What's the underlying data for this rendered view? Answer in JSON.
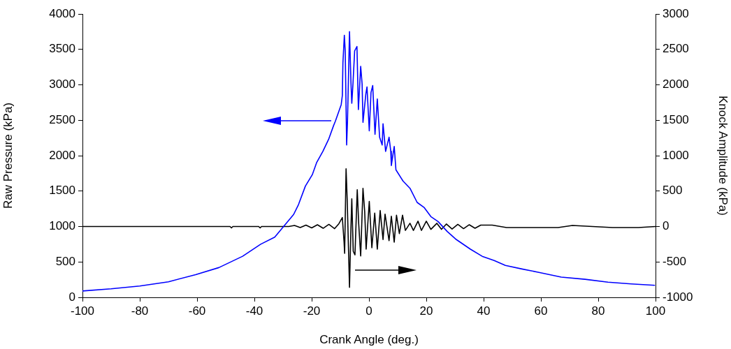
{
  "chart_data": {
    "type": "line",
    "xlabel": "Crank Angle (deg.)",
    "ylabel": "Raw Pressure (kPa)",
    "y2label": "Knock Amplitude (kPa)",
    "xlim": [
      -100,
      100
    ],
    "xticks": [
      -100,
      -80,
      -60,
      -40,
      -20,
      0,
      20,
      40,
      60,
      80,
      100
    ],
    "ylim": [
      0,
      4000
    ],
    "yticks": [
      0,
      500,
      1000,
      1500,
      2000,
      2500,
      3000,
      3500,
      4000
    ],
    "y2lim": [
      -1000,
      3000
    ],
    "y2ticks": [
      -1000,
      -500,
      0,
      500,
      1000,
      1500,
      2000,
      2500,
      3000
    ],
    "grid": false,
    "legend": false,
    "marker": "none",
    "line_style": "solid",
    "series": [
      {
        "color": "#0000ff",
        "x": [
          -100,
          -90,
          -80,
          -70,
          -60.5,
          -52.4,
          -44.1,
          -37.8,
          -32.9,
          -29.5,
          -26.3,
          -24.6,
          -22.2,
          -19.8,
          -18.3,
          -16.1,
          -14.1,
          -12.4,
          -11.7,
          -9.7,
          -9.3,
          -9.1,
          -8.6,
          -8.3,
          -7.8,
          -7.5,
          -6.8,
          -6.3,
          -6.0,
          -5.6,
          -5.0,
          -4.2,
          -3.7,
          -2.9,
          -2.4,
          -2.1,
          -1.1,
          -0.7,
          0.1,
          0.7,
          1.3,
          2.1,
          2.9,
          3.7,
          4.6,
          4.9,
          5.8,
          7.0,
          7.6,
          7.8,
          8.8,
          9.4,
          11.9,
          14.3,
          16.8,
          19.2,
          21.6,
          24.1,
          27.3,
          30.5,
          35.4,
          39.5,
          43.7,
          47.6,
          53.4,
          59.0,
          67.1,
          75.4,
          83.4,
          91.5,
          99.8
        ],
        "values": [
          90,
          120,
          160,
          220,
          320,
          420,
          580,
          750,
          850,
          1015,
          1170,
          1310,
          1570,
          1730,
          1900,
          2060,
          2230,
          2420,
          2490,
          2720,
          2850,
          3310,
          3700,
          3480,
          2150,
          2490,
          3750,
          3040,
          2740,
          3010,
          3480,
          3540,
          2650,
          3260,
          3010,
          2470,
          2870,
          2970,
          2350,
          2890,
          2990,
          2300,
          2800,
          2260,
          2150,
          2450,
          2060,
          2260,
          2060,
          1860,
          2130,
          1800,
          1640,
          1540,
          1340,
          1270,
          1140,
          1070,
          930,
          815,
          680,
          580,
          520,
          450,
          400,
          355,
          285,
          255,
          215,
          190,
          170
        ]
      },
      {
        "color": "#000000",
        "axis": "y2",
        "x": [
          -100,
          -48.5,
          -48,
          -47.5,
          -38.5,
          -38,
          -37.5,
          -28,
          -26,
          -24,
          -22,
          -20,
          -18,
          -16,
          -14,
          -12,
          -10.5,
          -9.3,
          -8.7,
          -8.5,
          -8.0,
          -7.6,
          -6.8,
          -6.3,
          -6.0,
          -5.5,
          -4.9,
          -4.1,
          -3.6,
          -2.9,
          -2.1,
          -1.5,
          -1.0,
          0.1,
          1.0,
          2.0,
          2.9,
          3.9,
          4.9,
          5.6,
          7.0,
          7.8,
          8.8,
          9.6,
          10.6,
          11.7,
          12.7,
          14.3,
          15.5,
          17.1,
          18.3,
          20.0,
          21.6,
          23.7,
          25.3,
          27,
          29,
          31,
          33,
          35,
          37,
          39,
          43,
          48,
          58,
          66,
          71,
          85,
          94,
          100
        ],
        "values": [
          0,
          0,
          -20,
          0,
          0,
          -20,
          0,
          0,
          15,
          -15,
          20,
          -20,
          25,
          -25,
          30,
          -30,
          40,
          126,
          -219,
          -380,
          815,
          370,
          -860,
          -20,
          390,
          -350,
          -400,
          520,
          45,
          -415,
          540,
          210,
          -320,
          355,
          -300,
          190,
          -320,
          225,
          -185,
          175,
          -200,
          145,
          -220,
          160,
          -100,
          160,
          -55,
          45,
          -55,
          75,
          -55,
          75,
          -40,
          45,
          -40,
          35,
          -35,
          30,
          -30,
          25,
          -25,
          20,
          20,
          -15,
          -15,
          -15,
          15,
          -15,
          -15,
          0
        ]
      }
    ]
  }
}
